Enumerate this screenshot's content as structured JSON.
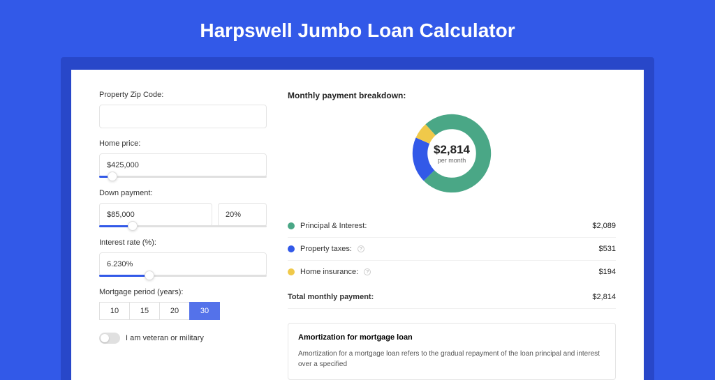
{
  "page": {
    "title": "Harpswell Jumbo Loan Calculator",
    "background_color": "#3259e8",
    "accent_color": "#2847c9"
  },
  "form": {
    "zip_label": "Property Zip Code:",
    "zip_value": "",
    "home_price_label": "Home price:",
    "home_price_value": "$425,000",
    "home_price_slider_pct": 8,
    "down_payment_label": "Down payment:",
    "down_payment_value": "$85,000",
    "down_payment_pct_value": "20%",
    "down_payment_slider_pct": 20,
    "interest_label": "Interest rate (%):",
    "interest_value": "6.230%",
    "interest_slider_pct": 30,
    "period_label": "Mortgage period (years):",
    "period_options": [
      "10",
      "15",
      "20",
      "30"
    ],
    "period_selected": "30",
    "veteran_label": "I am veteran or military"
  },
  "breakdown": {
    "title": "Monthly payment breakdown:",
    "donut": {
      "center_amount": "$2,814",
      "center_sub": "per month",
      "segments": [
        {
          "color": "#4aa786",
          "pct": 74.2
        },
        {
          "color": "#3259e8",
          "pct": 18.9
        },
        {
          "color": "#f0c94a",
          "pct": 6.9
        }
      ]
    },
    "items": [
      {
        "color": "#4aa786",
        "label": "Principal & Interest:",
        "value": "$2,089",
        "info": false
      },
      {
        "color": "#3259e8",
        "label": "Property taxes:",
        "value": "$531",
        "info": true
      },
      {
        "color": "#f0c94a",
        "label": "Home insurance:",
        "value": "$194",
        "info": true
      }
    ],
    "total_label": "Total monthly payment:",
    "total_value": "$2,814"
  },
  "amortization": {
    "title": "Amortization for mortgage loan",
    "text": "Amortization for a mortgage loan refers to the gradual repayment of the loan principal and interest over a specified"
  }
}
